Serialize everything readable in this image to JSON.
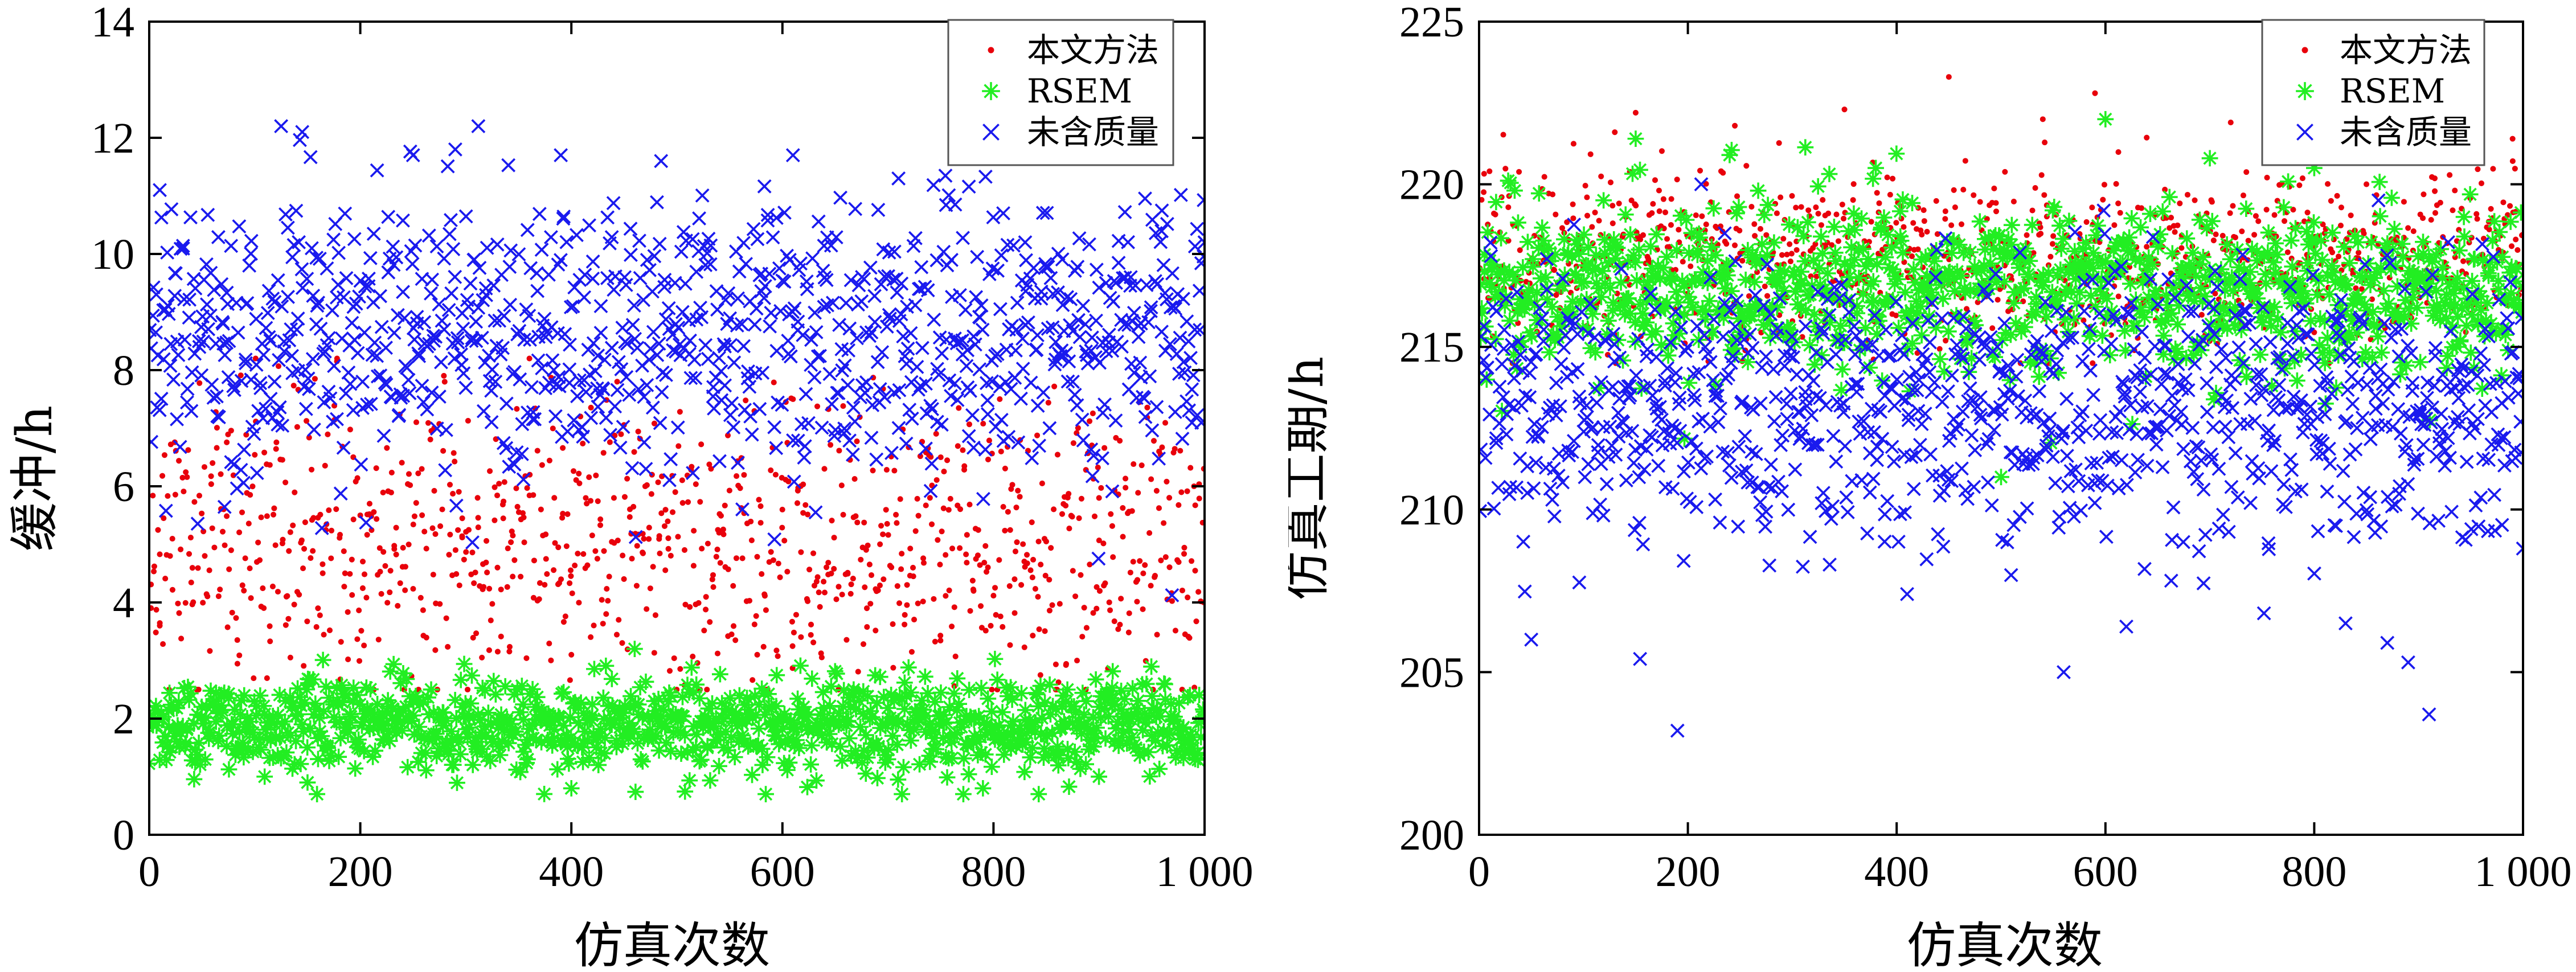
{
  "chart_data": [
    {
      "type": "scatter",
      "xlabel": "仿真次数",
      "ylabel": "缓冲/h",
      "xlim": [
        0,
        1000
      ],
      "ylim": [
        0,
        14
      ],
      "xticks": [
        0,
        200,
        400,
        600,
        800,
        1000
      ],
      "xtick_labels": [
        "0",
        "200",
        "400",
        "600",
        "800",
        "1 000"
      ],
      "yticks": [
        0,
        2,
        4,
        6,
        8,
        10,
        12,
        14
      ],
      "ytick_labels": [
        "0",
        "2",
        "4",
        "6",
        "8",
        "10",
        "12",
        "14"
      ],
      "legend_position": "top-right",
      "n_points": 1000,
      "series": [
        {
          "name": "本文方法",
          "marker": "dot",
          "color": "#e8000b",
          "center": 5.0,
          "spread": 1.25,
          "min": 2.5,
          "max": 8.2,
          "sample_points": [
            [
              10,
              3.6
            ],
            [
              60,
              6.4
            ],
            [
              130,
              4.1
            ],
            [
              200,
              5.5
            ],
            [
              270,
              7.0
            ],
            [
              330,
              4.6
            ],
            [
              400,
              3.1
            ],
            [
              470,
              6.0
            ],
            [
              540,
              5.2
            ],
            [
              610,
              7.5
            ],
            [
              680,
              3.9
            ],
            [
              750,
              6.5
            ],
            [
              820,
              4.4
            ],
            [
              900,
              5.8
            ],
            [
              990,
              6.0
            ]
          ]
        },
        {
          "name": "RSEM",
          "marker": "asterisk",
          "color": "#22ee22",
          "center": 1.85,
          "spread": 0.4,
          "min": 0.7,
          "max": 3.2,
          "sample_points": [
            [
              20,
              1.5
            ],
            [
              90,
              2.4
            ],
            [
              150,
              0.9
            ],
            [
              230,
              2.0
            ],
            [
              310,
              1.6
            ],
            [
              400,
              0.8
            ],
            [
              460,
              3.2
            ],
            [
              530,
              1.9
            ],
            [
              620,
              2.2
            ],
            [
              700,
              1.3
            ],
            [
              790,
              0.8
            ],
            [
              870,
              2.5
            ],
            [
              950,
              1.7
            ]
          ]
        },
        {
          "name": "未含质量",
          "marker": "x",
          "color": "#1a1aee",
          "center": 8.6,
          "spread": 1.2,
          "min": 4.0,
          "max": 12.2,
          "sample_points": [
            [
              10,
              11.1
            ],
            [
              70,
              8.8
            ],
            [
              125,
              12.2
            ],
            [
              145,
              12.1
            ],
            [
              250,
              11.7
            ],
            [
              290,
              11.8
            ],
            [
              390,
              11.7
            ],
            [
              485,
              11.6
            ],
            [
              610,
              11.7
            ],
            [
              710,
              11.3
            ],
            [
              830,
              10.2
            ],
            [
              930,
              9.6
            ],
            [
              1000,
              10.2
            ]
          ]
        }
      ]
    },
    {
      "type": "scatter",
      "xlabel": "仿真次数",
      "ylabel": "仿真工期/h",
      "xlim": [
        0,
        1000
      ],
      "ylim": [
        200,
        225
      ],
      "xticks": [
        0,
        200,
        400,
        600,
        800,
        1000
      ],
      "xtick_labels": [
        "0",
        "200",
        "400",
        "600",
        "800",
        "1 000"
      ],
      "yticks": [
        200,
        205,
        210,
        215,
        220,
        225
      ],
      "ytick_labels": [
        "200",
        "205",
        "210",
        "215",
        "220",
        "225"
      ],
      "legend_position": "top-right",
      "n_points": 1000,
      "series": [
        {
          "name": "本文方法",
          "marker": "dot",
          "color": "#e8000b",
          "center": 217.8,
          "spread": 1.3,
          "min": 214.5,
          "max": 223.3,
          "sample_points": [
            [
              10,
              220.4
            ],
            [
              130,
              221.6
            ],
            [
              150,
              222.2
            ],
            [
              245,
              221.8
            ],
            [
              350,
              222.3
            ],
            [
              450,
              223.3
            ],
            [
              540,
              222.0
            ],
            [
              590,
              222.8
            ],
            [
              720,
              221.9
            ],
            [
              850,
              220.0
            ],
            [
              990,
              221.4
            ]
          ]
        },
        {
          "name": "RSEM",
          "marker": "asterisk",
          "color": "#22ee22",
          "center": 216.8,
          "spread": 1.3,
          "min": 211.0,
          "max": 222.0,
          "sample_points": [
            [
              40,
              215.0
            ],
            [
              150,
              221.4
            ],
            [
              240,
              220.9
            ],
            [
              380,
              220.5
            ],
            [
              500,
              211.0
            ],
            [
              600,
              222.0
            ],
            [
              700,
              220.8
            ],
            [
              800,
              220.5
            ],
            [
              940,
              215.2
            ]
          ]
        },
        {
          "name": "未含质量",
          "marker": "x",
          "color": "#1a1aee",
          "center": 213.2,
          "spread": 2.2,
          "min": 203.2,
          "max": 220.0,
          "sample_points": [
            [
              50,
              206.0
            ],
            [
              190,
              203.2
            ],
            [
              410,
              207.4
            ],
            [
              560,
              205.0
            ],
            [
              620,
              206.4
            ],
            [
              830,
              206.5
            ],
            [
              870,
              205.9
            ],
            [
              890,
              205.3
            ],
            [
              910,
              203.7
            ],
            [
              1000,
              208.8
            ]
          ]
        }
      ]
    }
  ],
  "colors": {
    "red": "#e8000b",
    "green": "#22ee22",
    "blue": "#1a1aee"
  }
}
